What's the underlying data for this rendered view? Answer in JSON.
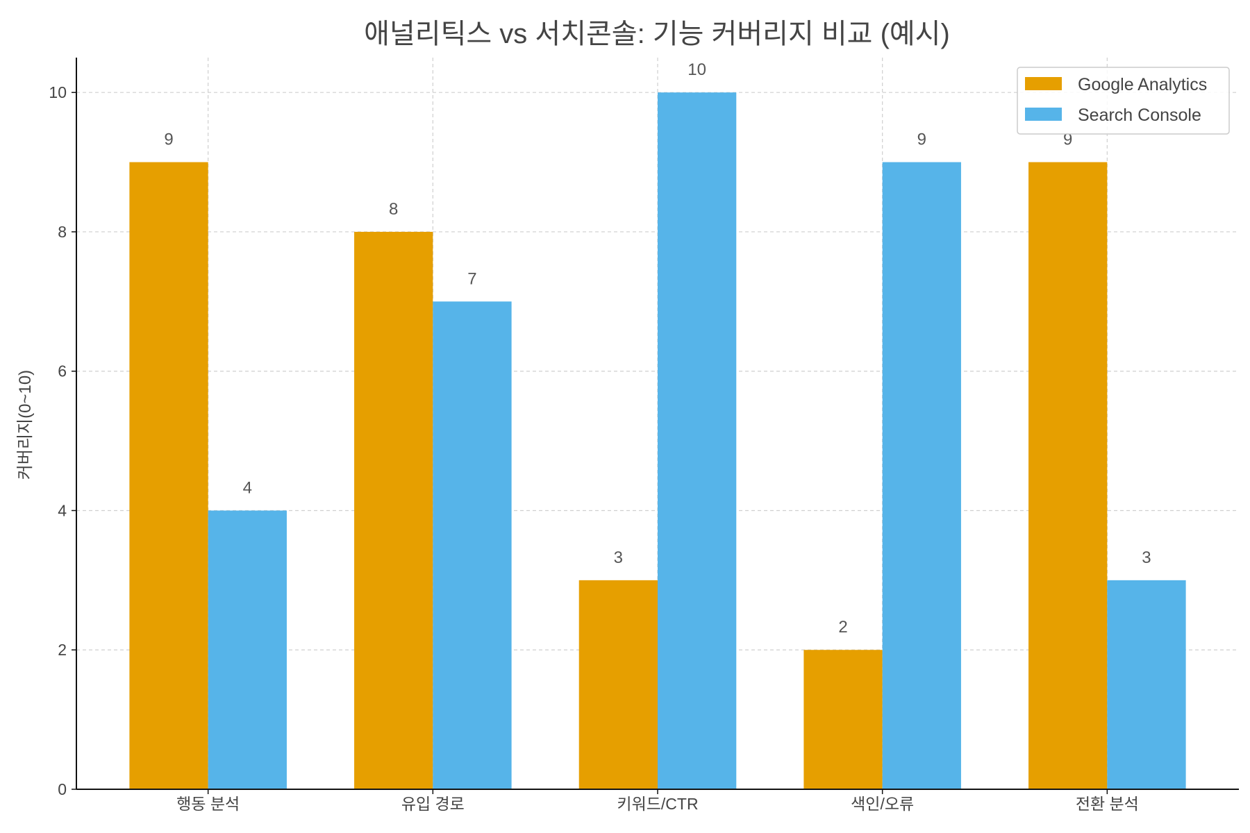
{
  "chart_data": {
    "type": "bar",
    "title": "애널리틱스 vs 서치콘솔: 기능 커버리지 비교 (예시)",
    "xlabel": "",
    "ylabel": "커버리지(0~10)",
    "categories": [
      "행동 분석",
      "유입 경로",
      "키워드/CTR",
      "색인/오류",
      "전환 분석"
    ],
    "series": [
      {
        "name": "Google Analytics",
        "values": [
          9,
          8,
          3,
          2,
          9
        ],
        "color": "#E69F00"
      },
      {
        "name": "Search Console",
        "values": [
          4,
          7,
          10,
          9,
          3
        ],
        "color": "#56B4E9"
      }
    ],
    "ylim": [
      0,
      10.5
    ],
    "yticks": [
      0,
      2,
      4,
      6,
      8,
      10
    ],
    "grid": true,
    "legend": "top-right",
    "data_labels": true
  }
}
